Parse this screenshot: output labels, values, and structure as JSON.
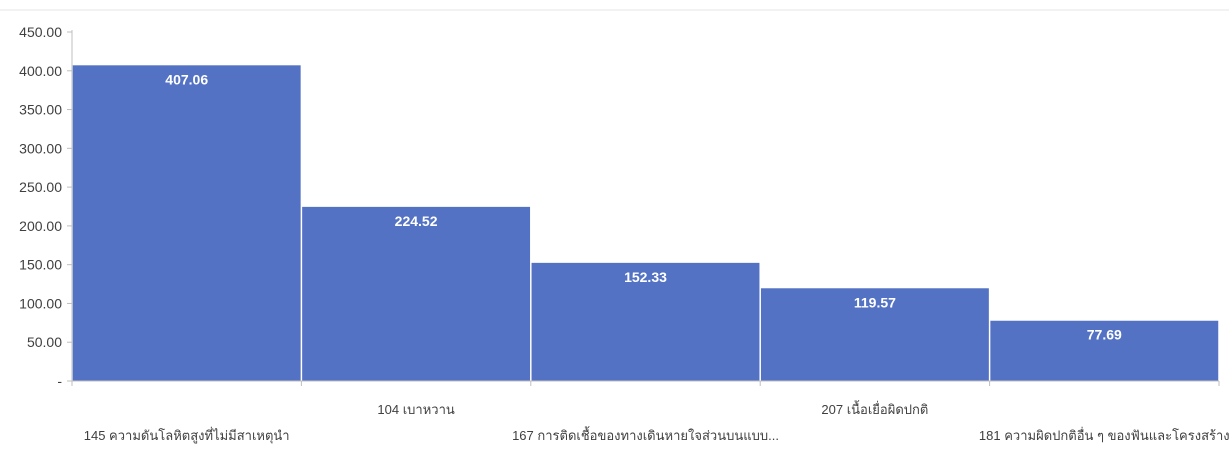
{
  "chart_data": {
    "type": "bar",
    "categories": [
      "145 ความดันโลหิตสูงที่ไม่มีสาเหตุนำ",
      "104 เบาหวาน",
      "167 การติดเชื้อของทางเดินหายใจส่วนบนแบบ...",
      "207 เนื้อเยื่อผิดปกติ",
      "181 ความผิดปกติอื่น ๆ ของฟันและโครงสร้าง"
    ],
    "values": [
      407.06,
      224.52,
      152.33,
      119.57,
      77.69
    ],
    "value_labels": [
      "407.06",
      "224.52",
      "152.33",
      "119.57",
      "77.69"
    ],
    "y_ticks": [
      0,
      50,
      100,
      150,
      200,
      250,
      300,
      350,
      400,
      450
    ],
    "y_tick_labels": [
      "-",
      "50.00",
      "100.00",
      "150.00",
      "200.00",
      "250.00",
      "300.00",
      "350.00",
      "400.00",
      "450.00"
    ],
    "ylim": [
      0,
      450
    ],
    "grid": false,
    "bar_color": "#5472c4",
    "title": "",
    "xlabel": "",
    "ylabel": ""
  }
}
